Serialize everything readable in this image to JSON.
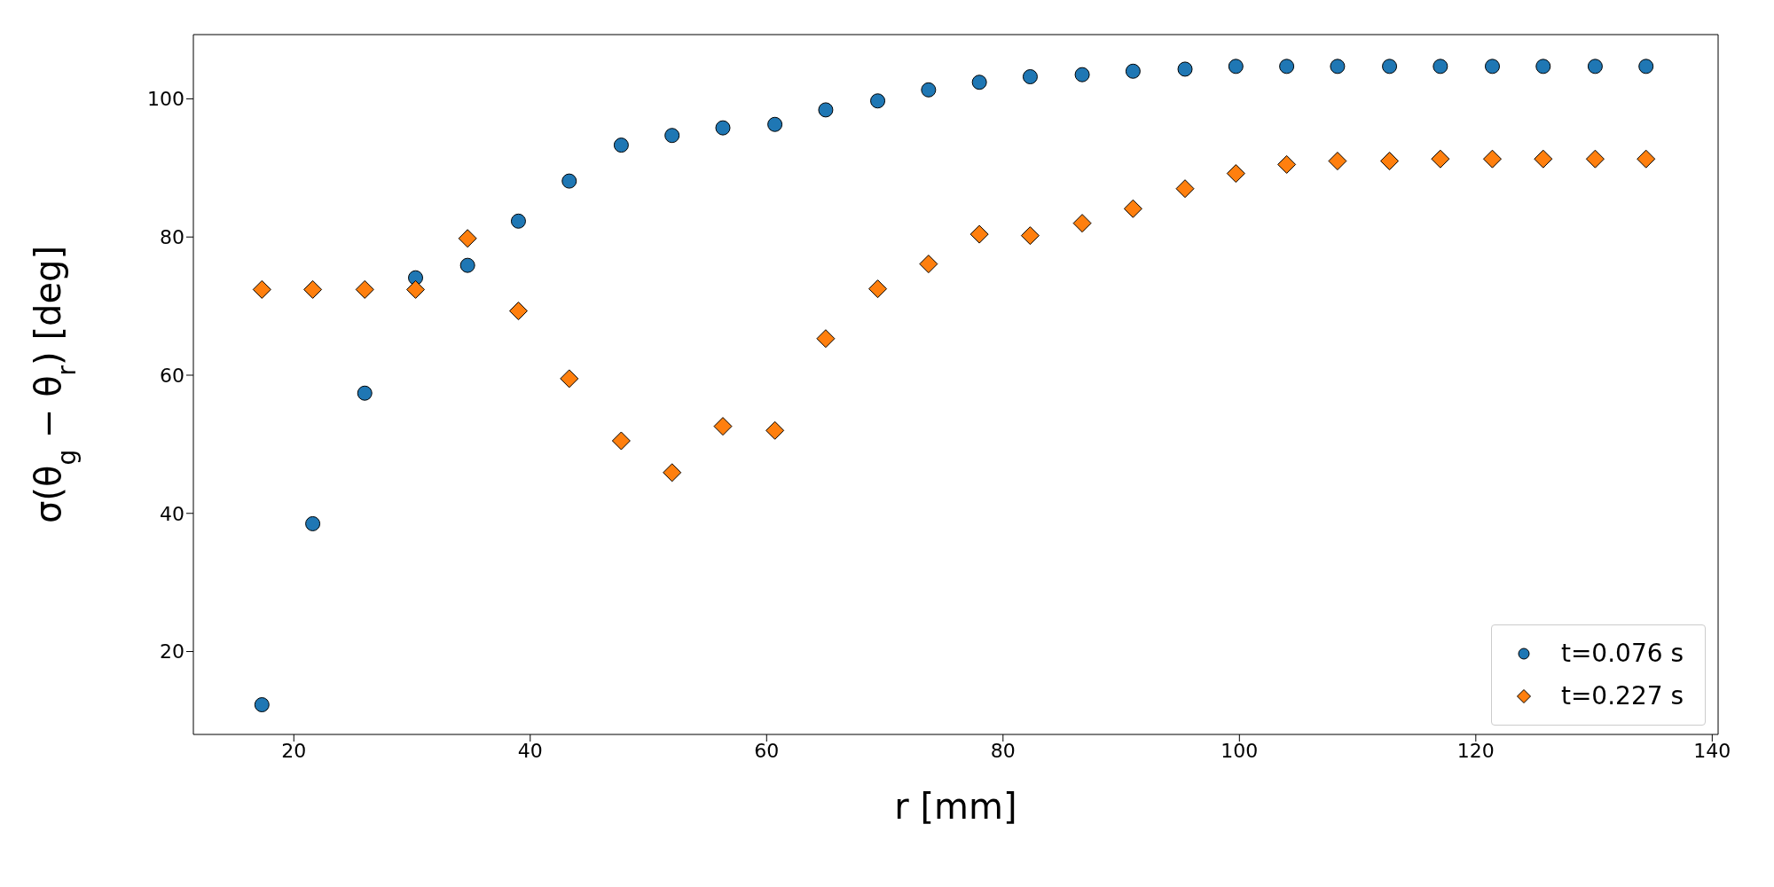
{
  "chart_data": {
    "type": "scatter",
    "xlabel": "r [mm]",
    "ylabel": "σ(θ$_{g}$ − θ$_{r}$) [deg]",
    "x": [
      17.3,
      21.6,
      26.0,
      30.3,
      34.7,
      39.0,
      43.3,
      47.7,
      52.0,
      56.3,
      60.7,
      65.0,
      69.4,
      73.7,
      78.0,
      82.3,
      86.7,
      91.0,
      95.4,
      99.7,
      104.0,
      108.3,
      112.7,
      117.0,
      121.4,
      125.7,
      130.1,
      134.4
    ],
    "series": [
      {
        "name": "t=0.076 s",
        "color": "#1f77b4",
        "marker": "circle",
        "values": [
          12.3,
          38.5,
          57.4,
          74.1,
          75.9,
          82.3,
          88.1,
          93.3,
          94.7,
          95.8,
          96.3,
          98.4,
          99.7,
          101.3,
          102.4,
          103.2,
          103.5,
          104.0,
          104.3,
          104.7,
          104.7,
          104.7,
          104.7,
          104.7,
          104.7,
          104.7,
          104.7,
          104.7
        ]
      },
      {
        "name": "t=0.227 s",
        "color": "#ff7f0e",
        "marker": "diamond",
        "values": [
          72.4,
          72.4,
          72.4,
          72.4,
          79.8,
          69.3,
          59.5,
          50.5,
          45.9,
          52.6,
          52.0,
          65.3,
          72.5,
          76.1,
          80.4,
          80.2,
          82.0,
          84.1,
          87.0,
          89.2,
          90.5,
          91.0,
          91.0,
          91.3,
          91.3,
          91.3,
          91.3,
          91.3
        ]
      }
    ],
    "xlim": [
      11.5,
      140.5
    ],
    "xticks": [
      20,
      40,
      60,
      80,
      100,
      120,
      140
    ],
    "ylim": [
      8,
      109.3
    ],
    "yticks": [
      20,
      40,
      60,
      80,
      100
    ],
    "grid": false,
    "legend": "bottom right"
  }
}
